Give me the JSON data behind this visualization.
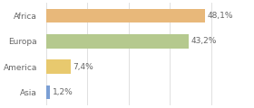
{
  "categories": [
    "Asia",
    "America",
    "Europa",
    "Africa"
  ],
  "values": [
    1.2,
    7.4,
    43.2,
    48.1
  ],
  "labels": [
    "1,2%",
    "7,4%",
    "43,2%",
    "48,1%"
  ],
  "bar_colors": [
    "#7b9fd4",
    "#e8c96e",
    "#b5c98e",
    "#e8b87a"
  ],
  "background_color": "#ffffff",
  "grid_color": "#e0e0e0",
  "label_fontsize": 6.5,
  "category_fontsize": 6.5,
  "text_color": "#666666",
  "xlim": [
    0,
    62
  ],
  "bar_height": 0.55
}
